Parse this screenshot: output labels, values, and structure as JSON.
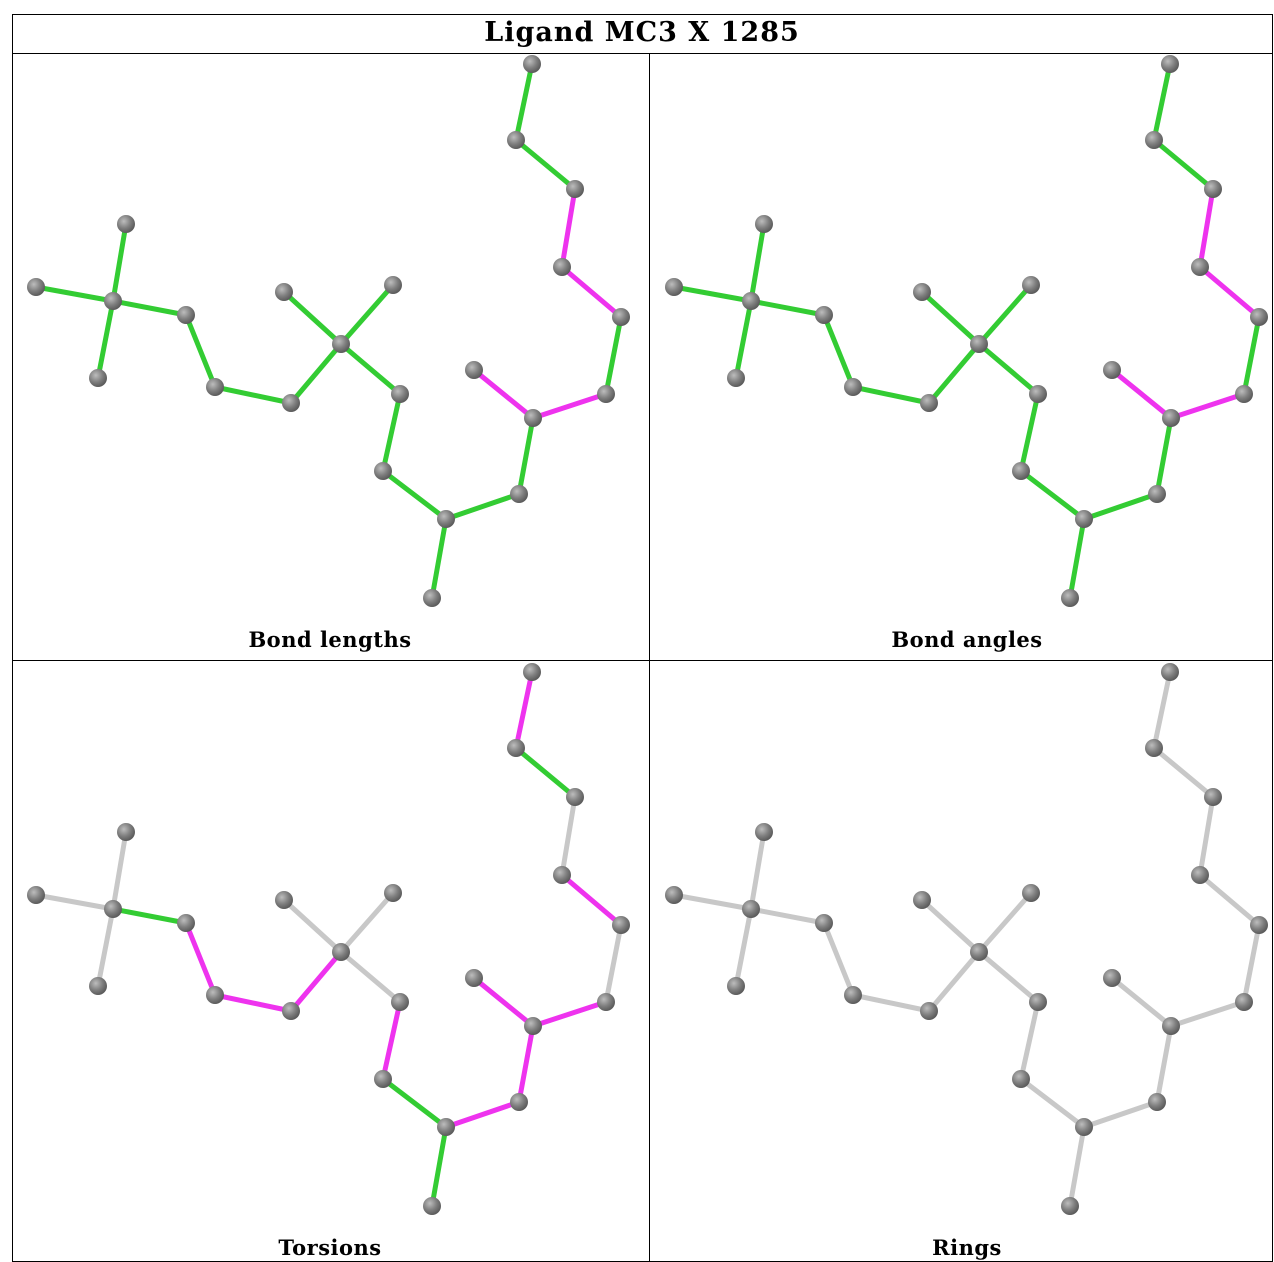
{
  "title": "Ligand MC3 X 1285",
  "colors": {
    "green": "#33cc33",
    "magenta": "#ee33ee",
    "gray": "#c8c8c8",
    "atom": "#808080"
  },
  "panels": [
    {
      "caption": "Bond lengths",
      "bond_colors": [
        "green",
        "green",
        "green",
        "green",
        "green",
        "green",
        "green",
        "green",
        "green",
        "green",
        "green",
        "green",
        "green",
        "green",
        "green",
        "magenta",
        "magenta",
        "green",
        "magenta",
        "magenta",
        "green",
        "green",
        "green",
        "green",
        "green",
        "green"
      ]
    },
    {
      "caption": "Bond angles",
      "bond_colors": [
        "green",
        "green",
        "green",
        "green",
        "green",
        "green",
        "green",
        "green",
        "green",
        "green",
        "green",
        "green",
        "green",
        "green",
        "green",
        "magenta",
        "magenta",
        "green",
        "magenta",
        "magenta",
        "green",
        "green",
        "green",
        "green",
        "green",
        "green"
      ]
    },
    {
      "caption": "Torsions",
      "bond_colors": [
        "gray",
        "gray",
        "gray",
        "green",
        "magenta",
        "magenta",
        "magenta",
        "gray",
        "gray",
        "gray",
        "magenta",
        "green",
        "green",
        "magenta",
        "magenta",
        "magenta",
        "magenta",
        "gray",
        "magenta",
        "gray",
        "green",
        "magenta",
        "magenta",
        "green",
        "green",
        "gray"
      ]
    },
    {
      "caption": "Rings",
      "bond_colors": [
        "gray",
        "gray",
        "gray",
        "gray",
        "gray",
        "gray",
        "gray",
        "gray",
        "gray",
        "gray",
        "gray",
        "gray",
        "gray",
        "gray",
        "gray",
        "gray",
        "gray",
        "gray",
        "gray",
        "gray",
        "gray",
        "gray",
        "gray",
        "gray",
        "gray",
        "gray"
      ]
    }
  ]
}
